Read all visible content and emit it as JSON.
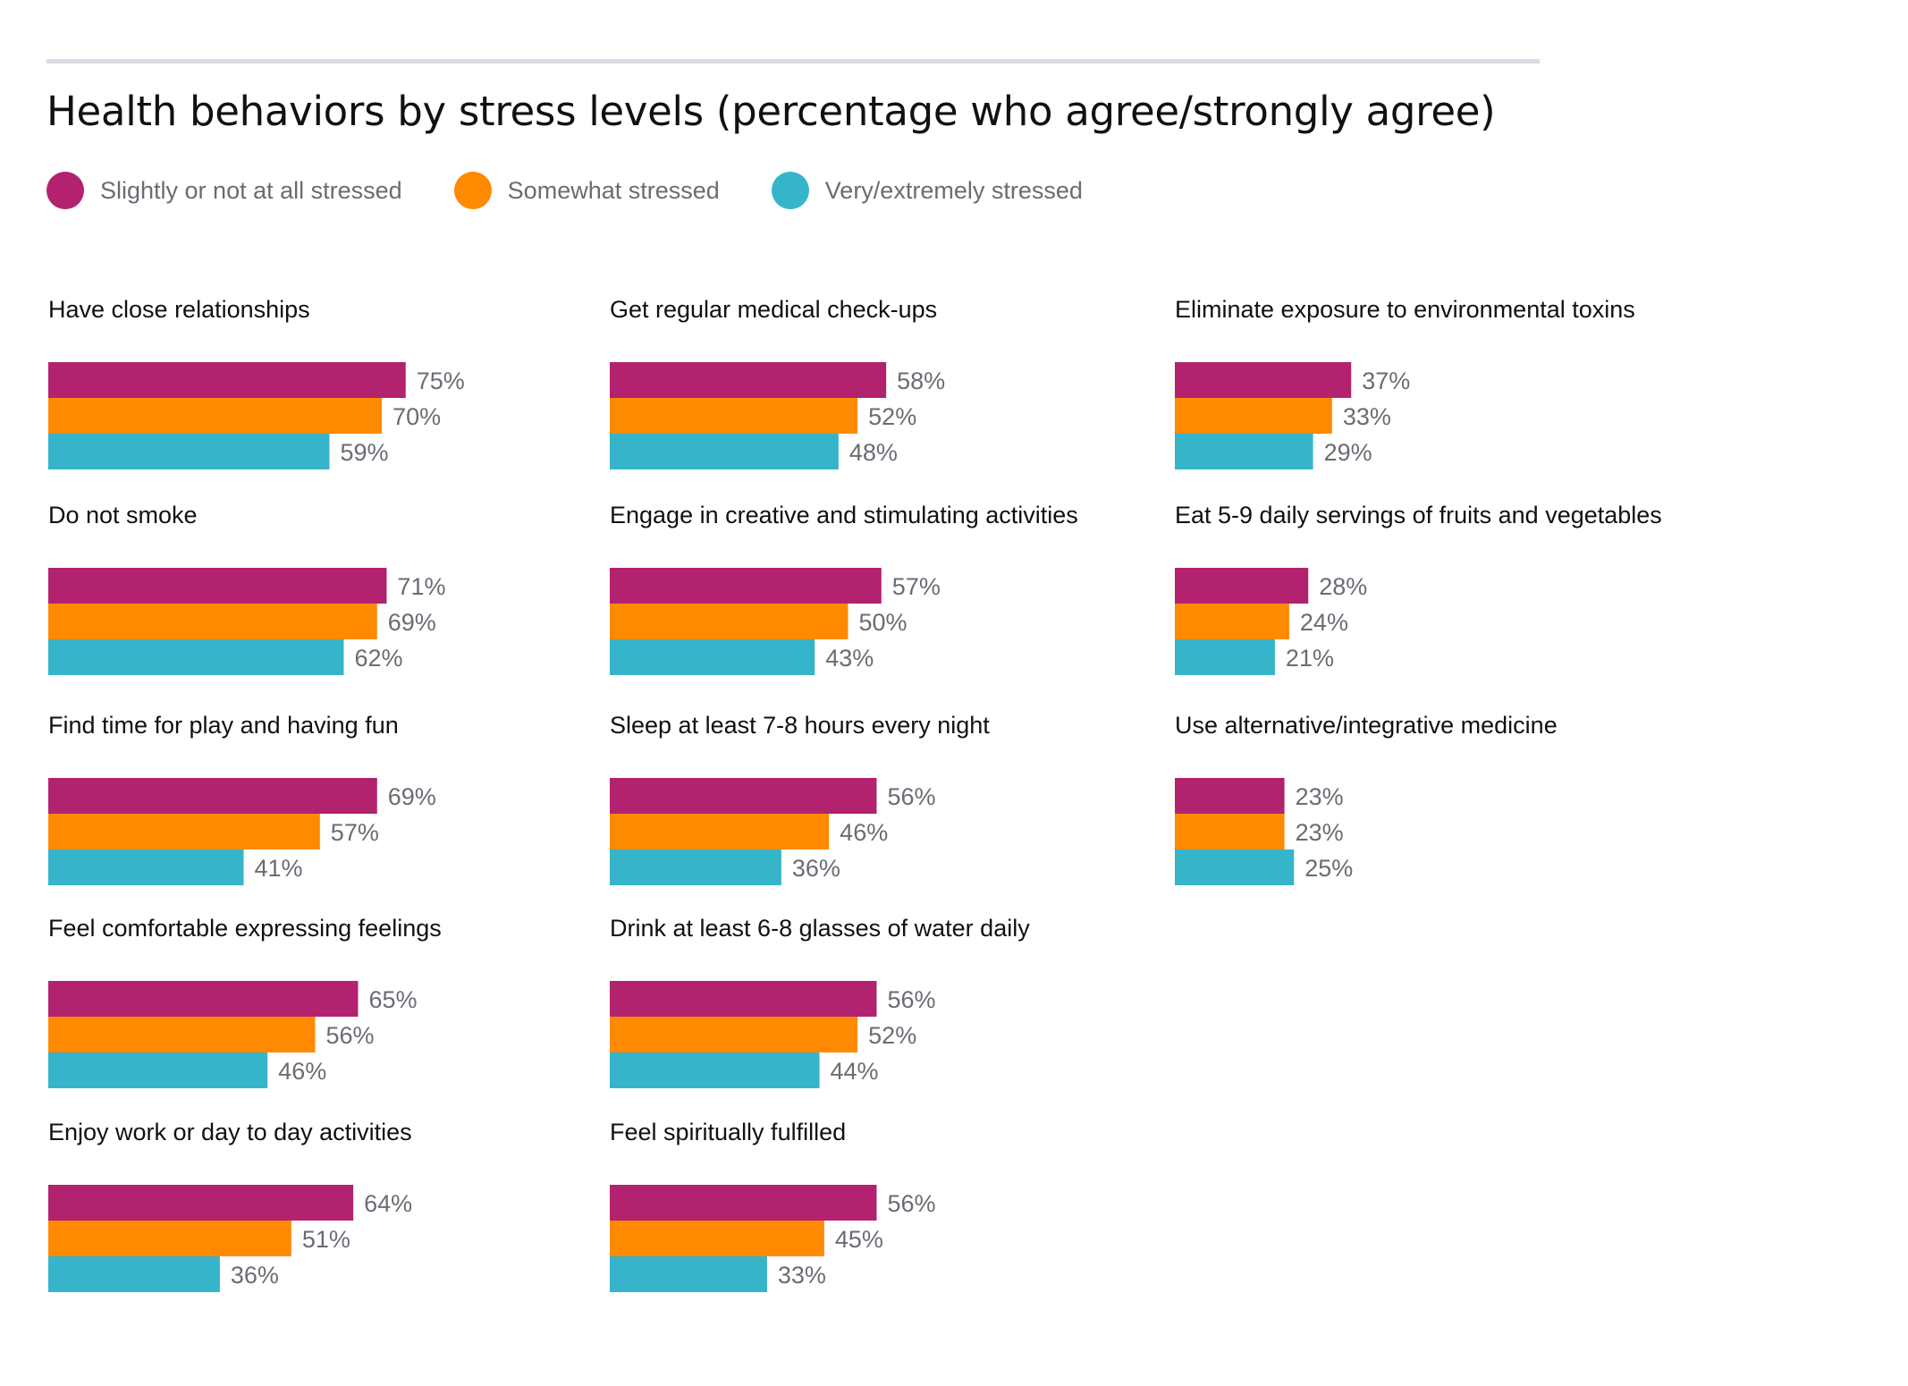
{
  "chart_data": {
    "type": "bar",
    "orientation": "horizontal",
    "title": "Health behaviors by stress levels (percentage who agree/strongly agree)",
    "xlabel": "",
    "ylabel": "",
    "unit": "%",
    "grid": false,
    "legend_position": "top-left",
    "series": [
      {
        "name": "Slightly or not at all stressed",
        "color": "#b2226e"
      },
      {
        "name": "Somewhat stressed",
        "color": "#ff8a00"
      },
      {
        "name": "Very/extremely stressed",
        "color": "#36b4c9"
      }
    ],
    "panels": [
      {
        "category": "Have close relationships",
        "values": [
          75,
          70,
          59
        ]
      },
      {
        "category": "Do not smoke",
        "values": [
          71,
          69,
          62
        ]
      },
      {
        "category": "Find time for play and having fun",
        "values": [
          69,
          57,
          41
        ]
      },
      {
        "category": "Feel comfortable expressing feelings",
        "values": [
          65,
          56,
          46
        ]
      },
      {
        "category": "Enjoy work or day to day activities",
        "values": [
          64,
          51,
          36
        ]
      },
      {
        "category": "Get regular medical check-ups",
        "values": [
          58,
          52,
          48
        ]
      },
      {
        "category": "Engage in creative and stimulating activities",
        "values": [
          57,
          50,
          43
        ]
      },
      {
        "category": "Sleep at least 7-8 hours every night",
        "values": [
          56,
          46,
          36
        ]
      },
      {
        "category": "Drink at least 6-8 glasses of water daily",
        "values": [
          56,
          52,
          44
        ]
      },
      {
        "category": "Feel spiritually fulfilled",
        "values": [
          56,
          45,
          33
        ]
      },
      {
        "category": "Eliminate exposure to environmental toxins",
        "values": [
          37,
          33,
          29
        ]
      },
      {
        "category": "Eat 5-9 daily servings of fruits and vegetables",
        "values": [
          28,
          24,
          21
        ]
      },
      {
        "category": "Use alternative/integrative medicine",
        "values": [
          23,
          23,
          25
        ]
      }
    ],
    "value_labels": [
      [
        "75%",
        "70%",
        "59%"
      ],
      [
        "71%",
        "69%",
        "62%"
      ],
      [
        "69%",
        "57%",
        "41%"
      ],
      [
        "65%",
        "56%",
        "46%"
      ],
      [
        "64%",
        "51%",
        "36%"
      ],
      [
        "58%",
        "52%",
        "48%"
      ],
      [
        "57%",
        "50%",
        "43%"
      ],
      [
        "56%",
        "46%",
        "36%"
      ],
      [
        "56%",
        "52%",
        "44%"
      ],
      [
        "56%",
        "45%",
        "33%"
      ],
      [
        "37%",
        "33%",
        "29%"
      ],
      [
        "28%",
        "24%",
        "21%"
      ],
      [
        "23%",
        "23%",
        "25%"
      ]
    ]
  }
}
